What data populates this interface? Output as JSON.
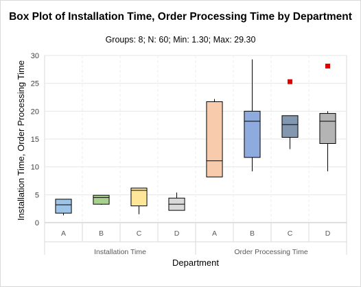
{
  "chart_data": {
    "type": "box",
    "title": "Box Plot of Installation Time, Order Processing Time by Department",
    "subtitle": "Groups: 8; N: 60; Min: 1.30; Max: 29.30",
    "xlabel": "Department",
    "ylabel": "Installation Time, Order Processing Time",
    "ylim": [
      0,
      30
    ],
    "yticks": [
      "0",
      "5",
      "10",
      "15",
      "20",
      "25",
      "30"
    ],
    "grid": true,
    "groups": [
      {
        "name": "Installation Time",
        "categories": [
          "A",
          "B",
          "C",
          "D"
        ]
      },
      {
        "name": "Order Processing Time",
        "categories": [
          "A",
          "B",
          "C",
          "D"
        ]
      }
    ],
    "boxes": [
      {
        "group": "Installation Time",
        "category": "A",
        "min": 1.3,
        "q1": 1.7,
        "median": 3.2,
        "q3": 4.2,
        "max": 4.2,
        "color": "#9dc3e6",
        "outliers": []
      },
      {
        "group": "Installation Time",
        "category": "B",
        "min": 3.2,
        "q1": 3.3,
        "median": 4.5,
        "q3": 4.9,
        "max": 4.9,
        "color": "#a9d18e",
        "outliers": []
      },
      {
        "group": "Installation Time",
        "category": "C",
        "min": 1.5,
        "q1": 3.0,
        "median": 5.8,
        "q3": 6.2,
        "max": 6.2,
        "color": "#ffe699",
        "outliers": []
      },
      {
        "group": "Installation Time",
        "category": "D",
        "min": 2.2,
        "q1": 2.2,
        "median": 3.3,
        "q3": 4.4,
        "max": 5.4,
        "color": "#d9d9d9",
        "outliers": []
      },
      {
        "group": "Order Processing Time",
        "category": "A",
        "min": 8.2,
        "q1": 8.2,
        "median": 11.1,
        "q3": 21.7,
        "max": 22.2,
        "color": "#f8cbad",
        "outliers": []
      },
      {
        "group": "Order Processing Time",
        "category": "B",
        "min": 9.2,
        "q1": 11.7,
        "median": 18.2,
        "q3": 20.0,
        "max": 29.3,
        "color": "#8faadc",
        "outliers": []
      },
      {
        "group": "Order Processing Time",
        "category": "C",
        "min": 13.2,
        "q1": 15.3,
        "median": 17.6,
        "q3": 19.2,
        "max": 19.2,
        "color": "#8497b0",
        "outliers": [
          25.3
        ]
      },
      {
        "group": "Order Processing Time",
        "category": "D",
        "min": 9.2,
        "q1": 14.2,
        "median": 18.2,
        "q3": 19.6,
        "max": 20.0,
        "color": "#b4b4b4",
        "outliers": [
          28.1
        ]
      }
    ],
    "outlier_color": "#e00000"
  }
}
